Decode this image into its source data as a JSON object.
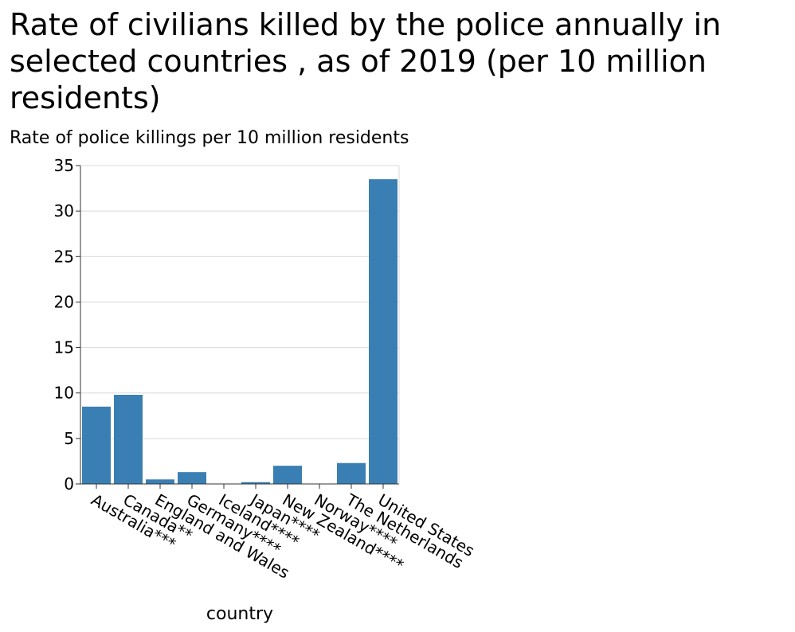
{
  "chart_data": {
    "type": "bar",
    "title": "Rate of civilians killed by the police annually in selected countries , as of 2019 (per 10 million residents)",
    "ylabel": "Rate of police killings per 10 million residents",
    "xlabel": "country",
    "categories": [
      "Australia***",
      "Canada**",
      "England and Wales",
      "Germany****",
      "Iceland****",
      "Japan****",
      "New Zealand****",
      "Norway****",
      "The Netherlands",
      "United States"
    ],
    "values": [
      8.5,
      9.8,
      0.5,
      1.3,
      0.0,
      0.2,
      2.0,
      0.0,
      2.3,
      33.5
    ],
    "ylim": [
      0,
      35
    ],
    "yticks": [
      0,
      5,
      10,
      15,
      20,
      25,
      30,
      35
    ],
    "grid": true,
    "bar_color": "#3a7fb3"
  }
}
